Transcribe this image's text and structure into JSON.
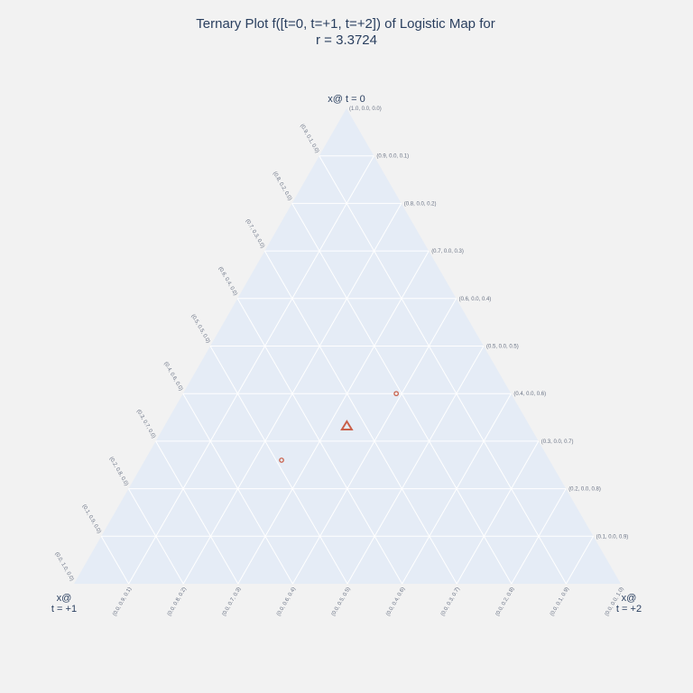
{
  "chart_data": {
    "type": "ternary",
    "title_lines": [
      "Ternary Plot f([t=0, t=+1, t=+2]) of Logistic Map for",
      "r = 3.3724"
    ],
    "axes": {
      "a": {
        "title": "x@ t = 0"
      },
      "b": {
        "title_lines": [
          "x@",
          "t = +1"
        ]
      },
      "c": {
        "title_lines": [
          "x@",
          "t = +2"
        ]
      }
    },
    "tick_labels": {
      "top_apex": "(1.0, 0.0, 0.0)",
      "right_edge": [
        "(0.9, 0.0, 0.1)",
        "(0.8, 0.0, 0.2)",
        "(0.7, 0.0, 0.3)",
        "(0.6, 0.0, 0.4)",
        "(0.5, 0.0, 0.5)",
        "(0.4, 0.0, 0.6)",
        "(0.3, 0.0, 0.7)",
        "(0.2, 0.0, 0.8)",
        "(0.1, 0.0, 0.9)"
      ],
      "left_edge": [
        "(0.9, 0.1, 0.0)",
        "(0.8, 0.2, 0.0)",
        "(0.7, 0.3, 0.0)",
        "(0.6, 0.4, 0.0)",
        "(0.5, 0.5, 0.0)",
        "(0.4, 0.6, 0.0)",
        "(0.3, 0.7, 0.0)",
        "(0.2, 0.8, 0.0)",
        "(0.1, 0.9, 0.0)",
        "(0.0, 1.0, 0.0)"
      ],
      "bottom_edge": [
        "(0.0, 0.9, 0.1)",
        "(0.0, 0.8, 0.2)",
        "(0.0, 0.7, 0.3)",
        "(0.0, 0.6, 0.4)",
        "(0.0, 0.5, 0.5)",
        "(0.0, 0.4, 0.6)",
        "(0.0, 0.3, 0.7)",
        "(0.0, 0.2, 0.8)",
        "(0.0, 0.1, 0.9)",
        "(0.0, 0.0, 1.0)"
      ]
    },
    "series": [
      {
        "marker": "circle",
        "points": [
          [
            0.4,
            0.21,
            0.39
          ],
          [
            0.26,
            0.49,
            0.25
          ]
        ]
      },
      {
        "marker": "triangle-up",
        "points": [
          [
            0.333,
            0.334,
            0.333
          ]
        ]
      }
    ],
    "colors": {
      "background": "#f2f2f2",
      "plot_area": "#e5ecf6",
      "grid": "#ffffff",
      "marker": "#c9604a",
      "text": "#2a3f5f"
    }
  }
}
